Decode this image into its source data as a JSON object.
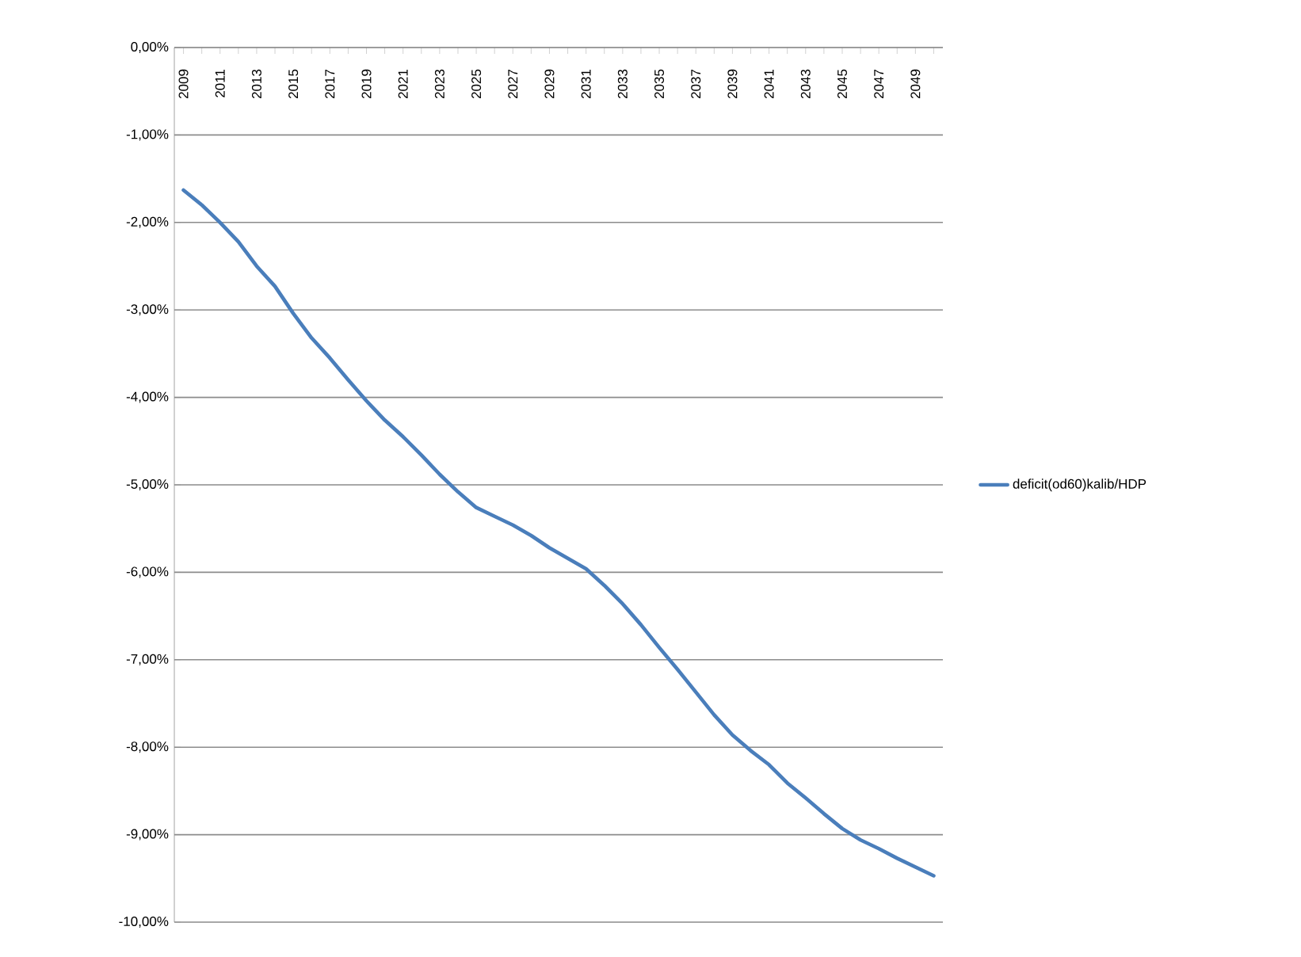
{
  "chart_data": {
    "type": "line",
    "categories": [
      "2009",
      null,
      "2011",
      null,
      "2013",
      null,
      "2015",
      null,
      "2017",
      null,
      "2019",
      null,
      "2021",
      null,
      "2023",
      null,
      "2025",
      null,
      "2027",
      null,
      "2029",
      null,
      "2031",
      null,
      "2033",
      null,
      "2035",
      null,
      "2037",
      null,
      "2039",
      null,
      "2041",
      null,
      "2043",
      null,
      "2045",
      null,
      "2047",
      null,
      "2049",
      null
    ],
    "series": [
      {
        "name": "deficit(od60)kalib/HDP",
        "color": "#4a7ebb",
        "values": [
          -1.63,
          -1.8,
          -2.0,
          -2.22,
          -2.5,
          -2.73,
          -3.04,
          -3.32,
          -3.55,
          -3.8,
          -4.04,
          -4.26,
          -4.45,
          -4.66,
          -4.88,
          -5.08,
          -5.26,
          -5.36,
          -5.46,
          -5.58,
          -5.72,
          -5.84,
          -5.96,
          -6.15,
          -6.36,
          -6.6,
          -6.86,
          -7.11,
          -7.37,
          -7.63,
          -7.86,
          -8.04,
          -8.2,
          -8.41,
          -8.58,
          -8.76,
          -8.93,
          -9.06,
          -9.16,
          -9.27,
          -9.37,
          -9.47
        ]
      }
    ],
    "ylim": [
      -10,
      0
    ],
    "yticks": [
      {
        "value": 0,
        "label": "0,00%"
      },
      {
        "value": -1,
        "label": "-1,00%"
      },
      {
        "value": -2,
        "label": "-2,00%"
      },
      {
        "value": -3,
        "label": "-3,00%"
      },
      {
        "value": -4,
        "label": "-4,00%"
      },
      {
        "value": -5,
        "label": "-5,00%"
      },
      {
        "value": -6,
        "label": "-6,00%"
      },
      {
        "value": -7,
        "label": "-7,00%"
      },
      {
        "value": -8,
        "label": "-8,00%"
      },
      {
        "value": -9,
        "label": "-9,00%"
      },
      {
        "value": -10,
        "label": "-10,00%"
      }
    ],
    "grid": "y",
    "legend": "right",
    "marker": "none",
    "line_style": "solid"
  }
}
